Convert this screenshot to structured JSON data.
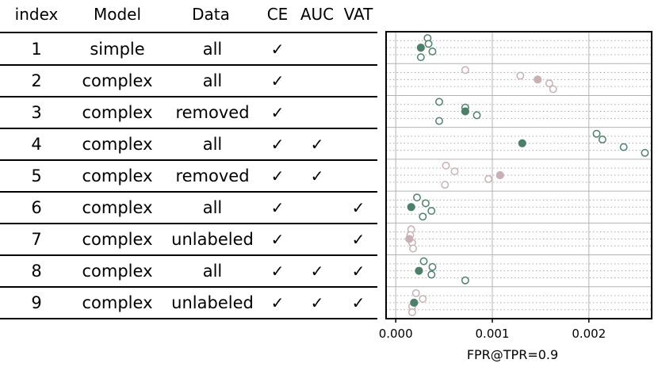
{
  "headers": {
    "index": "index",
    "model": "Model",
    "data": "Data",
    "ce": "CE",
    "auc": "AUC",
    "vat": "VAT"
  },
  "check_symbol": "✓",
  "rows": [
    {
      "index": "1",
      "model": "simple",
      "data": "all",
      "ce": true,
      "auc": false,
      "vat": false
    },
    {
      "index": "2",
      "model": "complex",
      "data": "all",
      "ce": true,
      "auc": false,
      "vat": false
    },
    {
      "index": "3",
      "model": "complex",
      "data": "removed",
      "ce": true,
      "auc": false,
      "vat": false
    },
    {
      "index": "4",
      "model": "complex",
      "data": "all",
      "ce": true,
      "auc": true,
      "vat": false
    },
    {
      "index": "5",
      "model": "complex",
      "data": "removed",
      "ce": true,
      "auc": true,
      "vat": false
    },
    {
      "index": "6",
      "model": "complex",
      "data": "all",
      "ce": true,
      "auc": false,
      "vat": true
    },
    {
      "index": "7",
      "model": "complex",
      "data": "unlabeled",
      "ce": true,
      "auc": false,
      "vat": true
    },
    {
      "index": "8",
      "model": "complex",
      "data": "all",
      "ce": true,
      "auc": true,
      "vat": true
    },
    {
      "index": "9",
      "model": "complex",
      "data": "unlabeled",
      "ce": true,
      "auc": true,
      "vat": true
    }
  ],
  "colors": {
    "green": "#4e7f6b",
    "pink": "#c7b1b4",
    "grid": "#b3b3b3",
    "dotted": "#aaaaaa"
  },
  "chart_data": {
    "type": "scatter",
    "xlabel": "FPR@TPR=0.9",
    "xlim": [
      -0.0001,
      0.00265
    ],
    "xticks": [
      0.0,
      0.001,
      0.002
    ],
    "xtick_labels": [
      "0.000",
      "0.001",
      "0.002"
    ],
    "grid": true,
    "rows": [
      {
        "row": 1,
        "filled": 0.00026,
        "filled_color": "green",
        "runs": [
          0.00033,
          0.00034,
          0.00038,
          0.00026
        ],
        "run_color": "green"
      },
      {
        "row": 2,
        "filled": 0.00147,
        "filled_color": "pink",
        "runs": [
          0.00072,
          0.00129,
          0.00159,
          0.00163
        ],
        "run_color": "pink"
      },
      {
        "row": 3,
        "filled": 0.00072,
        "filled_color": "green",
        "runs": [
          0.00045,
          0.00072,
          0.00084,
          0.00045
        ],
        "run_color": "green"
      },
      {
        "row": 4,
        "filled": 0.00131,
        "filled_color": "green",
        "runs": [
          0.00208,
          0.00214,
          0.00236,
          0.00258
        ],
        "run_color": "green"
      },
      {
        "row": 5,
        "filled": 0.00108,
        "filled_color": "pink",
        "runs": [
          0.00052,
          0.00061,
          0.00096,
          0.00051
        ],
        "run_color": "pink"
      },
      {
        "row": 6,
        "filled": 0.00016,
        "filled_color": "green",
        "runs": [
          0.00022,
          0.00031,
          0.00037,
          0.00028
        ],
        "run_color": "green"
      },
      {
        "row": 7,
        "filled": 0.00014,
        "filled_color": "pink",
        "runs": [
          0.00016,
          0.00015,
          0.00017,
          0.00018
        ],
        "run_color": "pink"
      },
      {
        "row": 8,
        "filled": 0.00024,
        "filled_color": "green",
        "runs": [
          0.00029,
          0.00038,
          0.00037,
          0.00072
        ],
        "run_color": "green"
      },
      {
        "row": 9,
        "filled": 0.00019,
        "filled_color": "green",
        "runs": [
          0.00021,
          0.00028,
          0.00017,
          0.00017
        ],
        "run_color": "pink"
      }
    ]
  }
}
